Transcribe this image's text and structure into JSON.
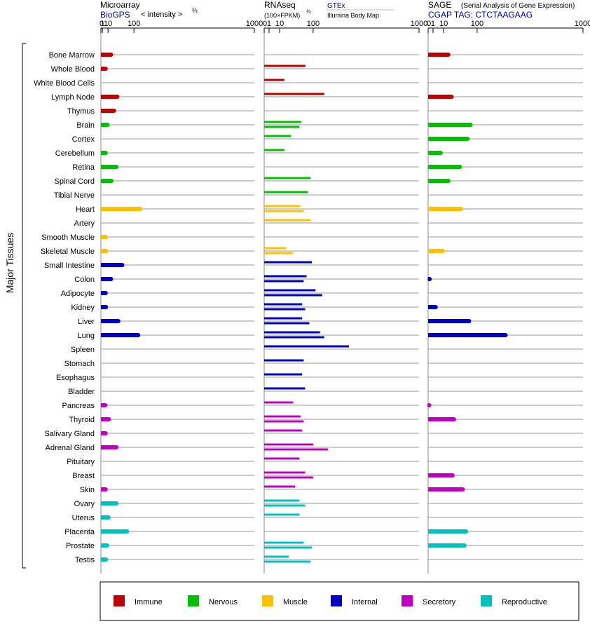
{
  "chart_data": {
    "type": "bar",
    "ylabel": "Major Tissues",
    "colors": {
      "Immune": "#c00000",
      "Nervous": "#00c000",
      "Muscle": "#ffc000",
      "Internal": "#0000c0",
      "Secretory": "#c000c0",
      "Reproductive": "#00c0c0"
    },
    "legend": {
      "placement": "bottom",
      "entries": [
        "Immune",
        "Nervous",
        "Muscle",
        "Internal",
        "Secretory",
        "Reproductive"
      ]
    },
    "ticks": [
      {
        "label": "0",
        "value": 0
      },
      {
        "label": "1",
        "value": 1
      },
      {
        "label": "10",
        "value": 10
      },
      {
        "label": "100",
        "value": 100
      },
      {
        "label": "1000",
        "value": 1000
      }
    ],
    "panels": [
      {
        "title": "Microarray",
        "subtitle_link": "BioGPS",
        "scale_note": "< intensity >",
        "scale_exp": "⅔",
        "xlim": [
          0,
          1000
        ]
      },
      {
        "title": "RNAseq",
        "scale_note": "(100×FPKM)",
        "scale_exp": "½",
        "source_link": "GTEx",
        "source2": "Illumina Body Map",
        "xlim": [
          0,
          1000
        ]
      },
      {
        "title": "SAGE",
        "title_note": "(Serial Analysis of Gene Expression)",
        "subtitle_link": "CGAP TAG: CTCTAAGAAG",
        "xlim": [
          0,
          1000
        ]
      }
    ],
    "tissues": [
      {
        "name": "Bone Marrow",
        "group": "Immune",
        "microarray": 17,
        "rnaseq": [],
        "sage": 17
      },
      {
        "name": "Whole Blood",
        "group": "Immune",
        "microarray": 5.5,
        "rnaseq": [
          71
        ],
        "sage": null
      },
      {
        "name": "White Blood Cells",
        "group": "Immune",
        "microarray": null,
        "rnaseq": [
          17
        ],
        "sage": null
      },
      {
        "name": "Lymph Node",
        "group": "Immune",
        "microarray": 35,
        "rnaseq": [
          150
        ],
        "sage": 23
      },
      {
        "name": "Thymus",
        "group": "Immune",
        "microarray": 25,
        "rnaseq": [],
        "sage": null
      },
      {
        "name": "Brain",
        "group": "Nervous",
        "microarray": 9,
        "rnaseq": [
          57,
          52
        ],
        "sage": 75
      },
      {
        "name": "Cortex",
        "group": "Nervous",
        "microarray": null,
        "rnaseq": [
          30
        ],
        "sage": 65
      },
      {
        "name": "Cerebellum",
        "group": "Nervous",
        "microarray": 5.5,
        "rnaseq": [
          17
        ],
        "sage": 6.5
      },
      {
        "name": "Retina",
        "group": "Nervous",
        "microarray": 32,
        "rnaseq": [],
        "sage": 42
      },
      {
        "name": "Spinal Cord",
        "group": "Nervous",
        "microarray": 18,
        "rnaseq": [
          90
        ],
        "sage": 17
      },
      {
        "name": "Tibial Nerve",
        "group": "Nervous",
        "microarray": null,
        "rnaseq": [
          80
        ],
        "sage": null
      },
      {
        "name": "Heart",
        "group": "Muscle",
        "microarray": 130,
        "rnaseq": [
          55,
          65
        ],
        "sage": 45
      },
      {
        "name": "Artery",
        "group": "Muscle",
        "microarray": null,
        "rnaseq": [
          90
        ],
        "sage": null
      },
      {
        "name": "Smooth Muscle",
        "group": "Muscle",
        "microarray": 6,
        "rnaseq": [],
        "sage": null
      },
      {
        "name": "Skeletal Muscle",
        "group": "Muscle",
        "microarray": 6.5,
        "rnaseq": [
          20,
          35
        ],
        "sage": 9
      },
      {
        "name": "Small Intestine",
        "group": "Internal",
        "microarray": 52,
        "rnaseq": [
          95
        ],
        "sage": null
      },
      {
        "name": "Colon",
        "group": "Internal",
        "microarray": 17,
        "rnaseq": [
          75,
          65
        ],
        "sage": 0.1
      },
      {
        "name": "Adipocyte",
        "group": "Internal",
        "microarray": 5.5,
        "rnaseq": [
          110,
          140
        ],
        "sage": null
      },
      {
        "name": "Kidney",
        "group": "Internal",
        "microarray": 6,
        "rnaseq": [
          60,
          70
        ],
        "sage": 2.4
      },
      {
        "name": "Liver",
        "group": "Internal",
        "microarray": 38,
        "rnaseq": [
          60,
          85
        ],
        "sage": 70
      },
      {
        "name": "Lung",
        "group": "Internal",
        "microarray": 120,
        "rnaseq": [
          130,
          150
        ],
        "sage": 250
      },
      {
        "name": "Spleen",
        "group": "Internal",
        "microarray": null,
        "rnaseq": [
          300
        ],
        "sage": null
      },
      {
        "name": "Stomach",
        "group": "Internal",
        "microarray": null,
        "rnaseq": [
          65
        ],
        "sage": null
      },
      {
        "name": "Esophagus",
        "group": "Internal",
        "microarray": null,
        "rnaseq": [
          60
        ],
        "sage": null
      },
      {
        "name": "Bladder",
        "group": "Internal",
        "microarray": null,
        "rnaseq": [
          70
        ],
        "sage": null
      },
      {
        "name": "Pancreas",
        "group": "Secretory",
        "microarray": 5,
        "rnaseq": [
          35
        ],
        "sage": 0.05
      },
      {
        "name": "Thyroid",
        "group": "Secretory",
        "microarray": 12,
        "rnaseq": [
          55,
          65
        ],
        "sage": 28
      },
      {
        "name": "Salivary Gland",
        "group": "Secretory",
        "microarray": 5.5,
        "rnaseq": [
          60
        ],
        "sage": null
      },
      {
        "name": "Adrenal Gland",
        "group": "Secretory",
        "microarray": 32,
        "rnaseq": [
          100,
          170
        ],
        "sage": null
      },
      {
        "name": "Pituitary",
        "group": "Secretory",
        "microarray": null,
        "rnaseq": [
          52
        ],
        "sage": null
      },
      {
        "name": "Breast",
        "group": "Secretory",
        "microarray": null,
        "rnaseq": [
          70,
          100
        ],
        "sage": 25
      },
      {
        "name": "Skin",
        "group": "Secretory",
        "microarray": 5.5,
        "rnaseq": [
          40
        ],
        "sage": 50
      },
      {
        "name": "Ovary",
        "group": "Reproductive",
        "microarray": 32,
        "rnaseq": [
          52,
          70
        ],
        "sage": null
      },
      {
        "name": "Uterus",
        "group": "Reproductive",
        "microarray": 11,
        "rnaseq": [
          52
        ],
        "sage": null
      },
      {
        "name": "Placenta",
        "group": "Reproductive",
        "microarray": 70,
        "rnaseq": [],
        "sage": 60
      },
      {
        "name": "Prostate",
        "group": "Reproductive",
        "microarray": 8,
        "rnaseq": [
          65,
          95
        ],
        "sage": 55
      },
      {
        "name": "Testis",
        "group": "Reproductive",
        "microarray": 6,
        "rnaseq": [
          25,
          90
        ],
        "sage": null
      }
    ]
  }
}
